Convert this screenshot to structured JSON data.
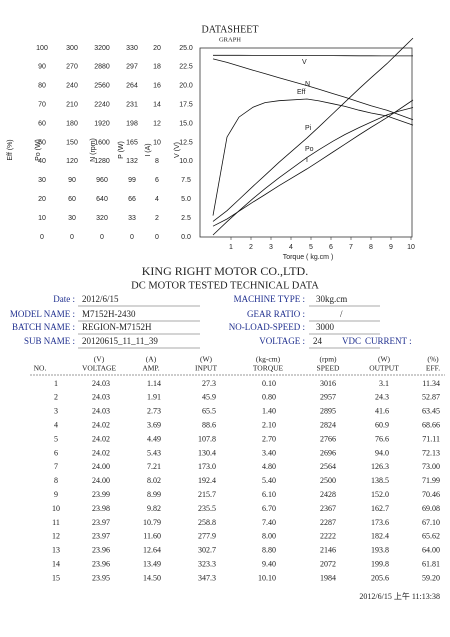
{
  "header": {
    "title": "DATASHEET",
    "subtitle": "GRAPH"
  },
  "graph": {
    "axes": [
      {
        "label": "Eff (%)",
        "ticks": [
          0,
          10,
          20,
          30,
          40,
          50,
          60,
          70,
          80,
          90,
          100
        ]
      },
      {
        "label": "Po (W)",
        "ticks": [
          0,
          30,
          60,
          90,
          120,
          150,
          180,
          210,
          240,
          270,
          300
        ]
      },
      {
        "label": "N (rpm)",
        "ticks": [
          0,
          320,
          640,
          960,
          1280,
          1600,
          1920,
          2240,
          2560,
          2880,
          3200
        ]
      },
      {
        "label": "P (W)",
        "ticks": [
          0,
          33,
          66,
          99,
          132,
          165,
          198,
          231,
          264,
          297,
          330
        ]
      },
      {
        "label": "I (A)",
        "ticks": [
          0,
          2,
          4,
          6,
          8,
          10,
          12,
          14,
          16,
          18,
          20
        ]
      },
      {
        "label": "V (V)",
        "ticks": [
          {
            "value": 0,
            "label": "0.0"
          },
          2.5,
          {
            "value": 5,
            "label": "5.0"
          },
          7.5,
          {
            "value": 10,
            "label": "10.0"
          },
          12.5,
          {
            "value": 15,
            "label": "15.0"
          },
          17.5,
          {
            "value": 20,
            "label": "20.0"
          },
          22.5,
          {
            "value": 25,
            "label": "25.0"
          }
        ]
      }
    ],
    "x_label": "Torque ( kg.cm )",
    "xlim": [
      0,
      10
    ],
    "xticks": [
      1,
      2,
      3,
      4,
      5,
      6,
      7,
      8,
      9,
      10
    ],
    "curve_labels": [
      "V",
      "N",
      "Eff",
      "Pi",
      "Po",
      "I"
    ]
  },
  "company": "KING RIGHT MOTOR CO.,LTD.",
  "doc_title": "DC MOTOR TESTED TECHNICAL DATA",
  "info": {
    "left": [
      {
        "label": "Date :",
        "value": "2012/6/15"
      },
      {
        "label": "MODEL NAME :",
        "value": "M7152H-2430"
      },
      {
        "label": "BATCH NAME :",
        "value": "REGION-M7152H"
      },
      {
        "label": "SUB NAME :",
        "value": "20120615_11_11_39"
      }
    ],
    "right": [
      {
        "label": "MACHINE TYPE :",
        "value": "30kg.cm"
      },
      {
        "label": "GEAR RATIO :",
        "value": "/"
      },
      {
        "label": "NO-LOAD-SPEED :",
        "value": "3000"
      },
      {
        "label": "VOLTAGE :",
        "value": "24",
        "unit": "VDC",
        "extra": "CURRENT :"
      }
    ]
  },
  "table": {
    "units": [
      "(V)",
      "(A)",
      "(W)",
      "(kg-cm)",
      "(rpm)",
      "(W)",
      "(%)"
    ],
    "columns": [
      "NO.",
      "VOLTAGE",
      "AMP.",
      "INPUT",
      "TORQUE",
      "SPEED",
      "OUTPUT",
      "EFF."
    ],
    "rows": [
      [
        "1",
        "24.03",
        "1.14",
        "27.3",
        "0.10",
        "3016",
        "3.1",
        "11.34"
      ],
      [
        "2",
        "24.03",
        "1.91",
        "45.9",
        "0.80",
        "2957",
        "24.3",
        "52.87"
      ],
      [
        "3",
        "24.03",
        "2.73",
        "65.5",
        "1.40",
        "2895",
        "41.6",
        "63.45"
      ],
      [
        "4",
        "24.02",
        "3.69",
        "88.6",
        "2.10",
        "2824",
        "60.9",
        "68.66"
      ],
      [
        "5",
        "24.02",
        "4.49",
        "107.8",
        "2.70",
        "2766",
        "76.6",
        "71.11"
      ],
      [
        "6",
        "24.02",
        "5.43",
        "130.4",
        "3.40",
        "2696",
        "94.0",
        "72.13"
      ],
      [
        "7",
        "24.00",
        "7.21",
        "173.0",
        "4.80",
        "2564",
        "126.3",
        "73.00"
      ],
      [
        "8",
        "24.00",
        "8.02",
        "192.4",
        "5.40",
        "2500",
        "138.5",
        "71.99"
      ],
      [
        "9",
        "23.99",
        "8.99",
        "215.7",
        "6.10",
        "2428",
        "152.0",
        "70.46"
      ],
      [
        "10",
        "23.98",
        "9.82",
        "235.5",
        "6.70",
        "2367",
        "162.7",
        "69.08"
      ],
      [
        "11",
        "23.97",
        "10.79",
        "258.8",
        "7.40",
        "2287",
        "173.6",
        "67.10"
      ],
      [
        "12",
        "23.97",
        "11.60",
        "277.9",
        "8.00",
        "2222",
        "182.4",
        "65.62"
      ],
      [
        "13",
        "23.96",
        "12.64",
        "302.7",
        "8.80",
        "2146",
        "193.8",
        "64.00"
      ],
      [
        "14",
        "23.96",
        "13.49",
        "323.3",
        "9.40",
        "2072",
        "199.8",
        "61.81"
      ],
      [
        "15",
        "23.95",
        "14.50",
        "347.3",
        "10.10",
        "1984",
        "205.6",
        "59.20"
      ]
    ]
  },
  "footer": "2012/6/15 上午 11:13:38"
}
